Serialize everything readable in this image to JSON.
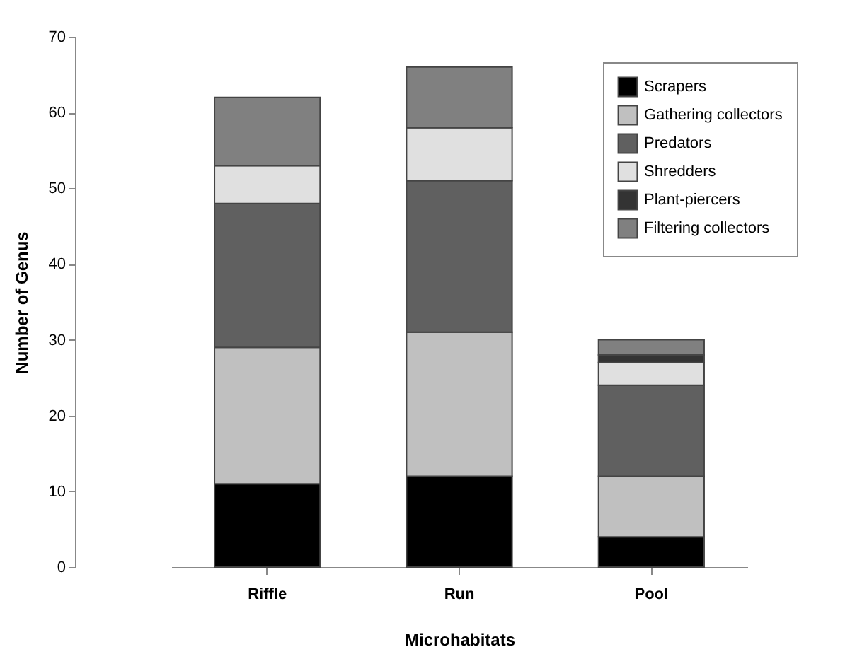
{
  "chart_data": {
    "type": "bar",
    "stacked": true,
    "xlabel": "Microhabitats",
    "ylabel": "Number of Genus",
    "categories": [
      "Riffle",
      "Run",
      "Pool"
    ],
    "series": [
      {
        "name": "Scrapers",
        "color": "#000000",
        "values": [
          11,
          12,
          4
        ]
      },
      {
        "name": "Gathering collectors",
        "color": "#c0c0c0",
        "values": [
          18,
          19,
          8
        ]
      },
      {
        "name": "Predators",
        "color": "#606060",
        "values": [
          19,
          20,
          12
        ]
      },
      {
        "name": "Shredders",
        "color": "#e0e0e0",
        "values": [
          5,
          7,
          3
        ]
      },
      {
        "name": "Plant-piercers",
        "color": "#333333",
        "values": [
          0,
          0,
          1
        ]
      },
      {
        "name": "Filtering collectors",
        "color": "#808080",
        "values": [
          9,
          8,
          2
        ]
      }
    ],
    "ylim": [
      0,
      70
    ],
    "yticks": [
      0,
      10,
      20,
      30,
      40,
      50,
      60,
      70
    ],
    "grid": false,
    "legend": "top right"
  }
}
